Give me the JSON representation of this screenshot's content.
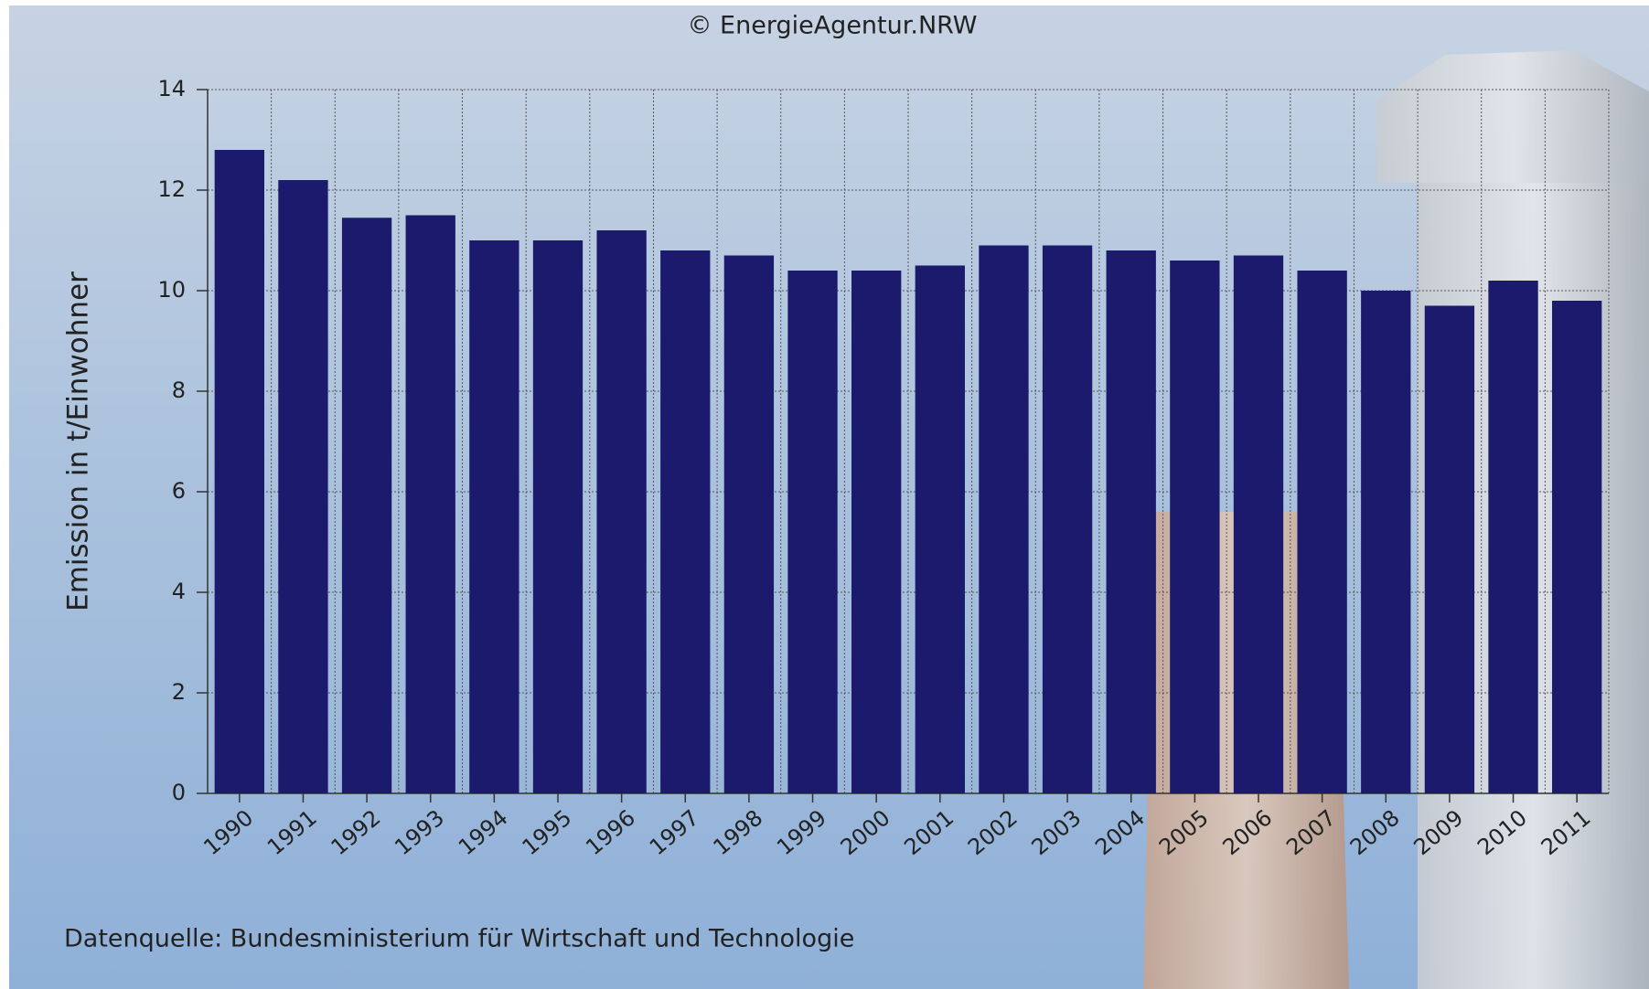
{
  "chart_data": {
    "type": "bar",
    "credit": "© EnergieAgentur.NRW",
    "y_label": "Emission in t/Einwohner",
    "source": "Datenquelle: Bundesministerium für Wirtschaft und Technologie",
    "categories": [
      "1990",
      "1991",
      "1992",
      "1993",
      "1994",
      "1995",
      "1996",
      "1997",
      "1998",
      "1999",
      "2000",
      "2001",
      "2002",
      "2003",
      "2004",
      "2005",
      "2006",
      "2007",
      "2008",
      "2009",
      "2010",
      "2011"
    ],
    "values": [
      12.8,
      12.2,
      11.45,
      11.5,
      11.0,
      11.0,
      11.2,
      10.8,
      10.7,
      10.4,
      10.4,
      10.5,
      10.9,
      10.9,
      10.8,
      10.6,
      10.7,
      10.4,
      10.0,
      9.7,
      10.2,
      9.8
    ],
    "color": "#1b1a6d",
    "ylim": [
      0,
      14
    ],
    "yticks": [
      0,
      2,
      4,
      6,
      8,
      10,
      12,
      14
    ],
    "grid": true
  }
}
